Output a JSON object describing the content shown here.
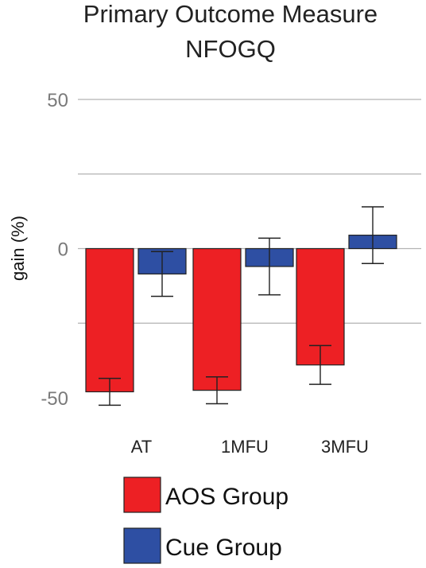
{
  "chart_data": {
    "type": "bar",
    "title": "Primary Outcome Measure",
    "subtitle": "NFOGQ",
    "ylabel": "gain (%)",
    "xlabel": "",
    "ylim": [
      -50,
      50
    ],
    "yticks": [
      50,
      0,
      -50
    ],
    "ytick_labels": [
      "50",
      "0",
      "-50"
    ],
    "gridlines": [
      50,
      25,
      0,
      -25
    ],
    "grid": true,
    "legend_position": "bottom",
    "categories": [
      "AT",
      "1MFU",
      "3MFU"
    ],
    "series": [
      {
        "name": "AOS Group",
        "color": "#ed2024",
        "values": [
          -48,
          -47.5,
          -39
        ],
        "error": [
          4.5,
          4.5,
          6.5
        ]
      },
      {
        "name": "Cue Group",
        "color": "#2e4fa3",
        "values": [
          -8.5,
          -6,
          4.5
        ],
        "error": [
          7.5,
          9.5,
          9.5
        ]
      }
    ]
  }
}
